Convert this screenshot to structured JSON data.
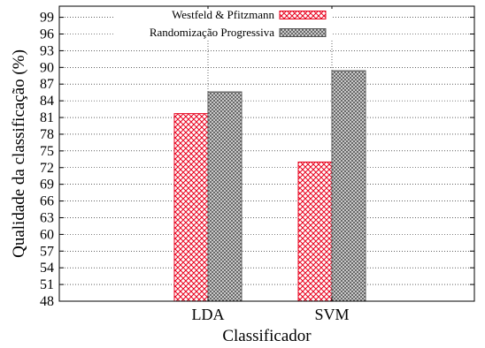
{
  "chart_data": {
    "type": "bar",
    "xlabel": "Classificador",
    "ylabel": "Qualidade da classificação (%)",
    "ylim": [
      48,
      101
    ],
    "yticks": [
      48,
      51,
      54,
      57,
      60,
      63,
      66,
      69,
      72,
      75,
      78,
      81,
      84,
      87,
      90,
      93,
      96,
      99
    ],
    "categories": [
      "LDA",
      "SVM"
    ],
    "series": [
      {
        "name": "Westfeld & Pfitzmann",
        "values": [
          81.7,
          73.0
        ],
        "color": "#e8001c",
        "pattern": "crosshatch-red"
      },
      {
        "name": "Randomização Progressiva",
        "values": [
          85.6,
          89.4
        ],
        "color": "#555555",
        "pattern": "crosshatch-gray"
      }
    ],
    "grid": true,
    "legend_position": "top-right"
  }
}
